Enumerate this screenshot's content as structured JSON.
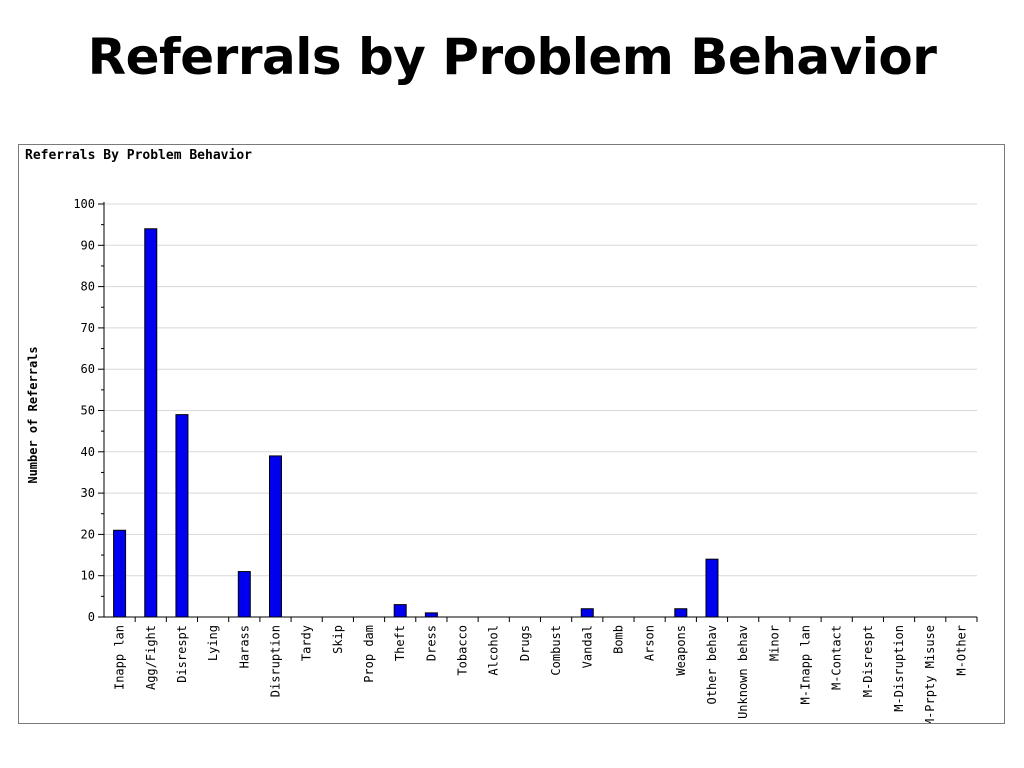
{
  "slide": {
    "title": "Referrals by Problem Behavior"
  },
  "chart_data": {
    "type": "bar",
    "title": "Referrals By Problem Behavior",
    "xlabel": "",
    "ylabel": "Number of Referrals",
    "ylim": [
      0,
      100
    ],
    "yticks": [
      0,
      10,
      20,
      30,
      40,
      50,
      60,
      70,
      80,
      90,
      100
    ],
    "grid": true,
    "categories": [
      "Inapp lan",
      "Agg/Fight",
      "Disrespt",
      "Lying",
      "Harass",
      "Disruption",
      "Tardy",
      "Skip",
      "Prop dam",
      "Theft",
      "Dress",
      "Tobacco",
      "Alcohol",
      "Drugs",
      "Combust",
      "Vandal",
      "Bomb",
      "Arson",
      "Weapons",
      "Other behav",
      "Unknown behav",
      "Minor",
      "M-Inapp lan",
      "M-Contact",
      "M-Disrespt",
      "M-Disruption",
      "M-Prpty Misuse",
      "M-Other"
    ],
    "values": [
      21,
      94,
      49,
      0,
      11,
      39,
      0,
      0,
      0,
      3,
      1,
      0,
      0,
      0,
      0,
      2,
      0,
      0,
      2,
      14,
      0,
      0,
      0,
      0,
      0,
      0,
      0,
      0
    ],
    "colors": {
      "bar": "#0000ee",
      "bar_stroke": "#000000",
      "grid": "#d8d8d8",
      "axis": "#000000"
    }
  }
}
